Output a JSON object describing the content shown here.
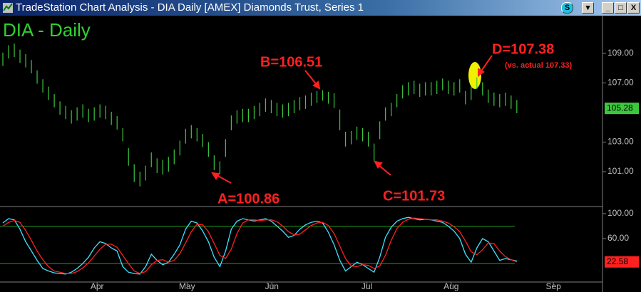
{
  "window": {
    "title": "TradeStation Chart Analysis - DIA  Daily  [AMEX] Diamonds Trust, Series 1"
  },
  "chart_data": [
    {
      "type": "ohlc",
      "title": "DIA - Daily",
      "color": "#3cc83c",
      "high": [
        109.05,
        109.55,
        109.65,
        109.25,
        108.95,
        108.55,
        107.85,
        107.25,
        106.75,
        106.25,
        105.75,
        105.45,
        105.15,
        105.35,
        105.55,
        105.25,
        105.35,
        105.55,
        105.45,
        105.05,
        104.75,
        103.95,
        102.6,
        101.5,
        101.0,
        101.4,
        102.3,
        101.9,
        101.8,
        102.0,
        102.5,
        103.1,
        103.9,
        104.15,
        103.95,
        103.55,
        103.0,
        102.1,
        101.7,
        103.2,
        104.8,
        105.15,
        105.25,
        105.25,
        105.45,
        105.65,
        105.95,
        105.85,
        105.65,
        105.55,
        105.65,
        105.85,
        106.05,
        106.15,
        106.35,
        106.45,
        106.51,
        106.4,
        106.3,
        105.2,
        103.7,
        103.75,
        104.05,
        103.95,
        103.7,
        102.9,
        104.4,
        105.35,
        105.65,
        106.25,
        106.85,
        107.05,
        107.15,
        106.95,
        107.05,
        107.05,
        107.15,
        107.3,
        107.15,
        107.05,
        107.25,
        106.45,
        106.75,
        107.38,
        107.05,
        106.55,
        106.35,
        106.25,
        106.35,
        106.15,
        105.85
      ],
      "low": [
        108.15,
        108.65,
        108.75,
        108.35,
        108.05,
        107.65,
        106.95,
        106.35,
        105.85,
        105.35,
        104.85,
        104.55,
        104.25,
        104.45,
        104.65,
        104.35,
        104.45,
        104.65,
        104.55,
        104.15,
        103.85,
        103.05,
        101.4,
        100.3,
        100.0,
        100.4,
        101.3,
        100.9,
        100.8,
        101.0,
        101.5,
        102.1,
        102.9,
        103.25,
        103.05,
        102.65,
        102.0,
        101.1,
        100.86,
        102.0,
        103.8,
        104.25,
        104.35,
        104.35,
        104.55,
        104.75,
        105.05,
        104.95,
        104.75,
        104.65,
        104.75,
        104.95,
        105.15,
        105.25,
        105.45,
        105.65,
        105.8,
        105.6,
        105.3,
        103.8,
        102.7,
        102.85,
        103.15,
        103.05,
        102.7,
        101.73,
        103.2,
        104.45,
        104.75,
        105.35,
        105.95,
        106.15,
        106.25,
        106.05,
        106.15,
        106.15,
        106.25,
        106.5,
        106.25,
        106.15,
        106.35,
        105.55,
        105.85,
        106.6,
        106.15,
        105.65,
        105.45,
        105.35,
        105.45,
        105.25,
        104.95
      ],
      "xlim": [
        -0.5,
        105
      ],
      "ylim": [
        98.64,
        111.55
      ],
      "yticks": [
        {
          "value": 101,
          "label": "101.00"
        },
        {
          "value": 103,
          "label": "103.00"
        },
        {
          "value": 107,
          "label": "107.00"
        },
        {
          "value": 109,
          "label": "109.00"
        }
      ],
      "last": {
        "value": 105.28,
        "label": "105.28"
      },
      "annotations": [
        {
          "text": "A=100.86"
        },
        {
          "text": "B=106.51"
        },
        {
          "text": "C=101.73"
        },
        {
          "text": "D=107.38"
        },
        {
          "text": "(vs. actual 107.33)"
        }
      ]
    },
    {
      "type": "line",
      "series": [
        {
          "color": "#40e0ff",
          "values": [
            85,
            92,
            90,
            75,
            55,
            40,
            25,
            12,
            8,
            5,
            4,
            3,
            6,
            12,
            20,
            30,
            45,
            55,
            52,
            45,
            40,
            15,
            6,
            4,
            3,
            15,
            35,
            25,
            18,
            22,
            35,
            50,
            75,
            88,
            85,
            72,
            55,
            30,
            15,
            40,
            75,
            88,
            92,
            90,
            88,
            90,
            92,
            88,
            80,
            72,
            62,
            65,
            75,
            82,
            86,
            88,
            85,
            70,
            50,
            25,
            8,
            15,
            22,
            18,
            12,
            6,
            30,
            62,
            78,
            88,
            92,
            94,
            92,
            90,
            91,
            90,
            88,
            86,
            80,
            72,
            60,
            35,
            22,
            45,
            60,
            55,
            40,
            25,
            28,
            26,
            24
          ]
        },
        {
          "color": "#ff2020",
          "values": [
            80,
            86,
            89,
            86,
            73,
            57,
            40,
            26,
            15,
            8,
            6,
            4,
            4,
            7,
            13,
            21,
            32,
            43,
            51,
            51,
            46,
            33,
            20,
            8,
            4,
            7,
            18,
            25,
            26,
            22,
            25,
            36,
            53,
            71,
            83,
            82,
            71,
            52,
            33,
            28,
            43,
            68,
            85,
            90,
            90,
            89,
            90,
            90,
            87,
            80,
            71,
            66,
            67,
            74,
            81,
            85,
            86,
            81,
            68,
            48,
            28,
            16,
            15,
            18,
            17,
            12,
            16,
            33,
            57,
            76,
            86,
            91,
            93,
            92,
            91,
            90,
            90,
            88,
            85,
            79,
            71,
            56,
            39,
            34,
            42,
            53,
            52,
            40,
            31,
            26,
            22.58
          ]
        }
      ],
      "xlim": [
        -0.5,
        105
      ],
      "ylim": [
        -12,
        109.1
      ],
      "yticks": [
        {
          "value": 60,
          "label": "60.00"
        },
        {
          "value": 100,
          "label": "100.00"
        }
      ],
      "levels": [
        20,
        80
      ],
      "level_color": "#20a020",
      "last": {
        "value": 22.58,
        "label": "22.58"
      },
      "xticks": [
        {
          "value": 16.5,
          "label": "Apr"
        },
        {
          "value": 32.25,
          "label": "May"
        },
        {
          "value": 47.1,
          "label": "Jun"
        },
        {
          "value": 63.75,
          "label": "Jul"
        },
        {
          "value": 78.5,
          "label": "Aug"
        },
        {
          "value": 96.4,
          "label": "Sep"
        }
      ]
    }
  ]
}
